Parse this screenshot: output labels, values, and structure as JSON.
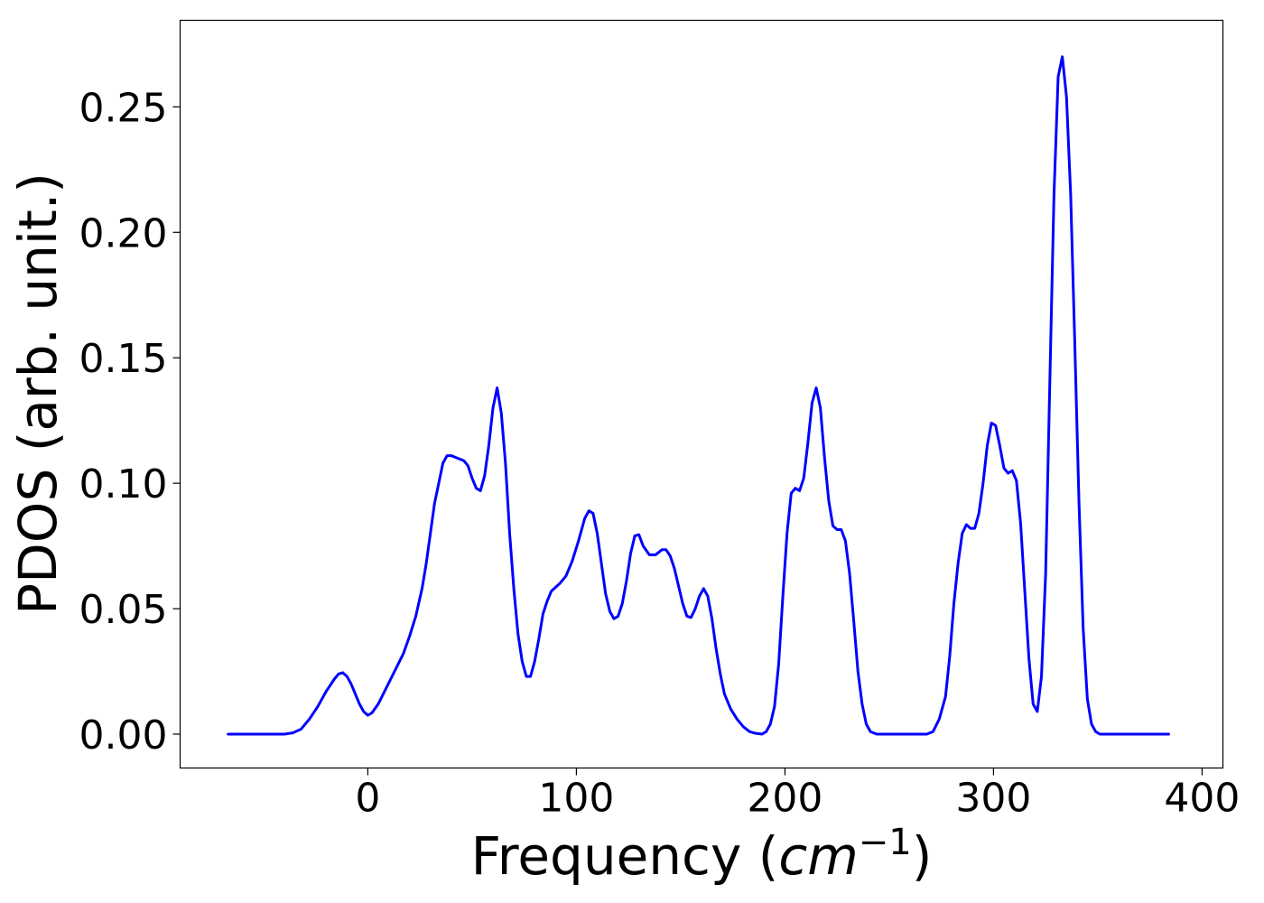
{
  "chart_data": {
    "type": "line",
    "title": "",
    "xlabel": "Frequency (cm⁻¹)",
    "xlabel_parts": {
      "prefix": "Frequency (",
      "var": "cm",
      "sup": "−1",
      "suffix": ")"
    },
    "ylabel": "PDOS (arb. unit.)",
    "xlim": [
      -90,
      410
    ],
    "ylim": [
      -0.0135,
      0.2845
    ],
    "xticks": [
      0,
      100,
      200,
      300,
      400
    ],
    "xtick_labels": [
      "0",
      "100",
      "200",
      "300",
      "400"
    ],
    "yticks": [
      0.0,
      0.05,
      0.1,
      0.15,
      0.2,
      0.25
    ],
    "ytick_labels": [
      "0.00",
      "0.05",
      "0.10",
      "0.15",
      "0.20",
      "0.25"
    ],
    "grid": false,
    "legend": null,
    "series": [
      {
        "color": "#0000ff",
        "points": [
          [
            -67,
            0.0
          ],
          [
            -40,
            0.0
          ],
          [
            -36,
            0.0005
          ],
          [
            -32,
            0.002
          ],
          [
            -28,
            0.006
          ],
          [
            -24,
            0.011
          ],
          [
            -20,
            0.017
          ],
          [
            -16,
            0.022
          ],
          [
            -14,
            0.024
          ],
          [
            -12,
            0.0245
          ],
          [
            -10,
            0.023
          ],
          [
            -8,
            0.02
          ],
          [
            -6,
            0.016
          ],
          [
            -4,
            0.012
          ],
          [
            -2,
            0.009
          ],
          [
            0,
            0.0075
          ],
          [
            2,
            0.0085
          ],
          [
            5,
            0.012
          ],
          [
            8,
            0.017
          ],
          [
            11,
            0.022
          ],
          [
            14,
            0.027
          ],
          [
            17,
            0.032
          ],
          [
            20,
            0.039
          ],
          [
            23,
            0.047
          ],
          [
            26,
            0.058
          ],
          [
            28,
            0.068
          ],
          [
            30,
            0.08
          ],
          [
            32,
            0.092
          ],
          [
            34,
            0.1
          ],
          [
            36,
            0.108
          ],
          [
            38,
            0.111
          ],
          [
            40,
            0.111
          ],
          [
            43,
            0.11
          ],
          [
            46,
            0.109
          ],
          [
            48,
            0.107
          ],
          [
            50,
            0.102
          ],
          [
            52,
            0.098
          ],
          [
            54,
            0.097
          ],
          [
            56,
            0.103
          ],
          [
            58,
            0.115
          ],
          [
            60,
            0.13
          ],
          [
            62,
            0.138
          ],
          [
            64,
            0.128
          ],
          [
            66,
            0.108
          ],
          [
            68,
            0.08
          ],
          [
            70,
            0.058
          ],
          [
            72,
            0.04
          ],
          [
            74,
            0.029
          ],
          [
            76,
            0.023
          ],
          [
            78,
            0.023
          ],
          [
            80,
            0.029
          ],
          [
            82,
            0.038
          ],
          [
            84,
            0.048
          ],
          [
            86,
            0.053
          ],
          [
            88,
            0.057
          ],
          [
            92,
            0.06
          ],
          [
            95,
            0.063
          ],
          [
            98,
            0.069
          ],
          [
            101,
            0.077
          ],
          [
            104,
            0.086
          ],
          [
            106,
            0.089
          ],
          [
            108,
            0.088
          ],
          [
            110,
            0.08
          ],
          [
            112,
            0.068
          ],
          [
            114,
            0.056
          ],
          [
            116,
            0.049
          ],
          [
            118,
            0.046
          ],
          [
            120,
            0.047
          ],
          [
            122,
            0.052
          ],
          [
            124,
            0.061
          ],
          [
            126,
            0.072
          ],
          [
            128,
            0.079
          ],
          [
            130,
            0.0795
          ],
          [
            132,
            0.075
          ],
          [
            135,
            0.0715
          ],
          [
            138,
            0.0715
          ],
          [
            141,
            0.0735
          ],
          [
            143,
            0.0735
          ],
          [
            145,
            0.071
          ],
          [
            147,
            0.066
          ],
          [
            149,
            0.059
          ],
          [
            151,
            0.052
          ],
          [
            153,
            0.047
          ],
          [
            155,
            0.0465
          ],
          [
            157,
            0.05
          ],
          [
            159,
            0.055
          ],
          [
            161,
            0.058
          ],
          [
            163,
            0.055
          ],
          [
            165,
            0.046
          ],
          [
            167,
            0.034
          ],
          [
            169,
            0.024
          ],
          [
            171,
            0.016
          ],
          [
            174,
            0.01
          ],
          [
            177,
            0.006
          ],
          [
            180,
            0.003
          ],
          [
            183,
            0.001
          ],
          [
            186,
            0.0003
          ],
          [
            189,
            0.0
          ],
          [
            191,
            0.001
          ],
          [
            193,
            0.004
          ],
          [
            195,
            0.011
          ],
          [
            197,
            0.028
          ],
          [
            199,
            0.055
          ],
          [
            201,
            0.08
          ],
          [
            203,
            0.096
          ],
          [
            205,
            0.098
          ],
          [
            207,
            0.097
          ],
          [
            209,
            0.102
          ],
          [
            211,
            0.116
          ],
          [
            213,
            0.132
          ],
          [
            215,
            0.138
          ],
          [
            217,
            0.13
          ],
          [
            219,
            0.11
          ],
          [
            221,
            0.093
          ],
          [
            223,
            0.083
          ],
          [
            225,
            0.0815
          ],
          [
            227,
            0.0815
          ],
          [
            229,
            0.077
          ],
          [
            231,
            0.064
          ],
          [
            233,
            0.045
          ],
          [
            235,
            0.025
          ],
          [
            237,
            0.012
          ],
          [
            239,
            0.004
          ],
          [
            241,
            0.001
          ],
          [
            244,
            0.0
          ],
          [
            268,
            0.0
          ],
          [
            271,
            0.001
          ],
          [
            274,
            0.006
          ],
          [
            277,
            0.015
          ],
          [
            279,
            0.031
          ],
          [
            281,
            0.052
          ],
          [
            283,
            0.068
          ],
          [
            285,
            0.08
          ],
          [
            287,
            0.0835
          ],
          [
            289,
            0.082
          ],
          [
            291,
            0.082
          ],
          [
            293,
            0.088
          ],
          [
            295,
            0.1
          ],
          [
            297,
            0.115
          ],
          [
            299,
            0.124
          ],
          [
            301,
            0.123
          ],
          [
            303,
            0.115
          ],
          [
            305,
            0.106
          ],
          [
            307,
            0.104
          ],
          [
            309,
            0.105
          ],
          [
            311,
            0.101
          ],
          [
            313,
            0.084
          ],
          [
            315,
            0.057
          ],
          [
            317,
            0.03
          ],
          [
            319,
            0.012
          ],
          [
            321,
            0.009
          ],
          [
            323,
            0.023
          ],
          [
            325,
            0.064
          ],
          [
            327,
            0.14
          ],
          [
            329,
            0.215
          ],
          [
            331,
            0.262
          ],
          [
            333,
            0.27
          ],
          [
            335,
            0.254
          ],
          [
            337,
            0.215
          ],
          [
            339,
            0.155
          ],
          [
            341,
            0.092
          ],
          [
            343,
            0.042
          ],
          [
            345,
            0.014
          ],
          [
            347,
            0.004
          ],
          [
            349,
            0.001
          ],
          [
            351,
            0.0
          ],
          [
            384,
            0.0
          ]
        ]
      }
    ]
  }
}
